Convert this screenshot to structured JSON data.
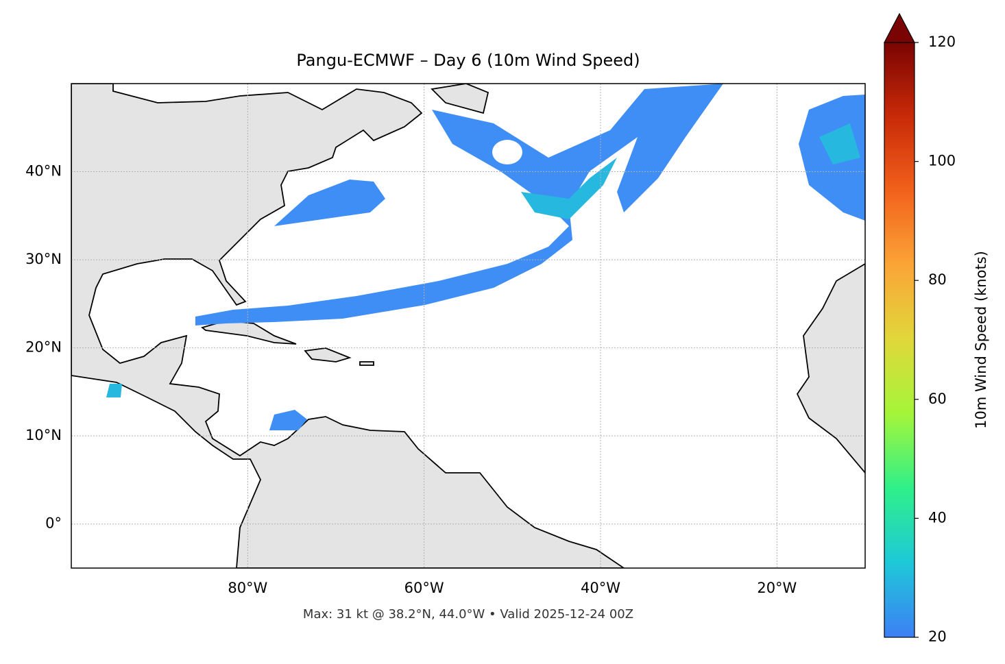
{
  "chart_data": {
    "type": "map",
    "title": "Pangu-ECMWF – Day 6 (10m Wind Speed)",
    "footer": "Max: 31 kt @ 38.2°N, 44.0°W • Valid 2025-12-24 00Z",
    "xlim": [
      -100,
      -10
    ],
    "ylim": [
      -5,
      50
    ],
    "xticks": [
      {
        "value": -80,
        "label": "80°W"
      },
      {
        "value": -60,
        "label": "60°W"
      },
      {
        "value": -40,
        "label": "40°W"
      },
      {
        "value": -20,
        "label": "20°W"
      }
    ],
    "yticks": [
      {
        "value": 0,
        "label": "0°"
      },
      {
        "value": 10,
        "label": "10°N"
      },
      {
        "value": 20,
        "label": "20°N"
      },
      {
        "value": 30,
        "label": "30°N"
      },
      {
        "value": 40,
        "label": "40°N"
      }
    ],
    "grid": true,
    "colorbar": {
      "label": "10m Wind Speed (knots)",
      "lim": [
        20,
        120
      ],
      "ticks": [
        20,
        40,
        60,
        80,
        100,
        120
      ],
      "colors": [
        "#3d7ff5",
        "#1ec8d8",
        "#2ef08a",
        "#a4f53a",
        "#e0d83a",
        "#fba537",
        "#f2621c",
        "#c92a08",
        "#7a0403"
      ]
    }
  }
}
